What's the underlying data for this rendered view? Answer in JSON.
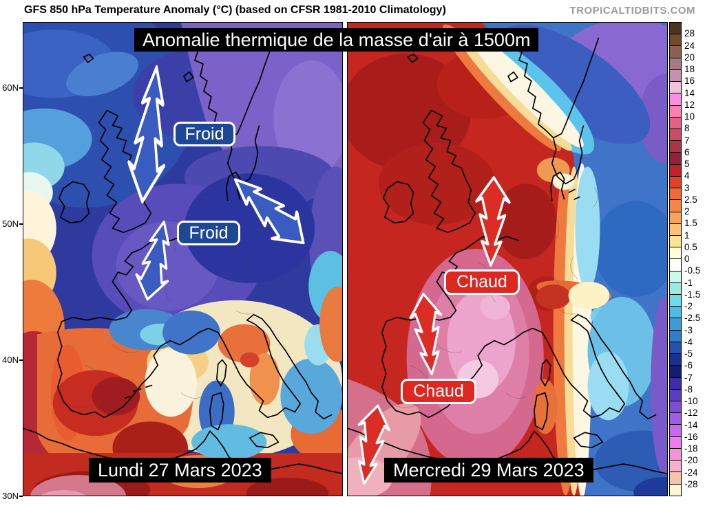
{
  "header": {
    "title": "GFS 850 hPa Temperature Anomaly (°C) (based on CFSR 1981-2010 Climatology)",
    "brand": "TROPICALTIDBITS.COM"
  },
  "banner": "Anomalie thermique de la masse d'air à 1500m",
  "axes": {
    "latitude_labels": [
      "60N",
      "50N",
      "40N",
      "30N"
    ]
  },
  "panels": {
    "left": {
      "date": "Lundi 27 Mars 2023",
      "annotation_labels": [
        "Froid",
        "Froid"
      ],
      "annotation_color": "#1e4796",
      "arrow_color": "#3a5cc0",
      "arrow_direction": "down"
    },
    "right": {
      "date": "Mercredi 29 Mars 2023",
      "annotation_labels": [
        "Chaud",
        "Chaud"
      ],
      "annotation_color": "#dd2822",
      "arrow_color": "#dd2c26",
      "arrow_direction": "up"
    }
  },
  "colorbar": {
    "tick_labels": [
      "28",
      "24",
      "20",
      "18",
      "16",
      "14",
      "12",
      "10",
      "8",
      "7",
      "6",
      "5",
      "4",
      "3",
      "2.5",
      "2",
      "1.5",
      "1",
      "0.5",
      "0",
      "-0.5",
      "-1",
      "-1.5",
      "-2",
      "-2.5",
      "-3",
      "-4",
      "-5",
      "-6",
      "-7",
      "-8",
      "-10",
      "-12",
      "-14",
      "-16",
      "-18",
      "-20",
      "-24",
      "-28"
    ],
    "segment_colors": [
      "#503221",
      "#6f4a2e",
      "#8d6152",
      "#a67a87",
      "#c493aa",
      "#edc3dc",
      "#fc8ee2",
      "#f782b2",
      "#e76086",
      "#cd4b67",
      "#ae3349",
      "#961f39",
      "#c51f2b",
      "#e2402b",
      "#ee6a3b",
      "#f4864a",
      "#f8a35c",
      "#fbc377",
      "#fde29a",
      "#ffffd8",
      "#ffffff",
      "#cdf8ee",
      "#97eee0",
      "#6cdcea",
      "#4fbce6",
      "#3e9bd6",
      "#2f7cca",
      "#2450ae",
      "#1c2f90",
      "#141d70",
      "#3c2ea6",
      "#5c3ec2",
      "#7c4ed6",
      "#a05ce8",
      "#c868f0",
      "#ee7cf0",
      "#f492dc",
      "#f8b0cc",
      "#f8c2ae",
      "#fdf6d2"
    ]
  }
}
